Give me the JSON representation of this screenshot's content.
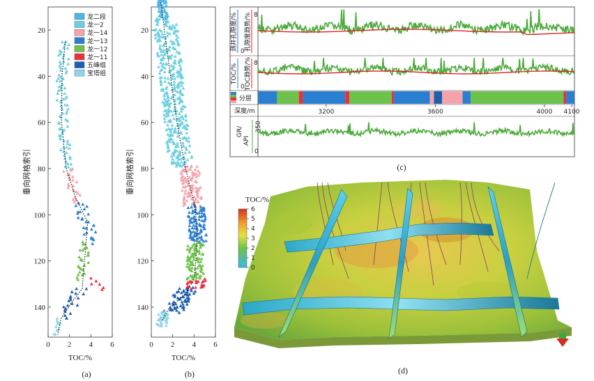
{
  "chart_data": [
    {
      "panel": "a",
      "type": "scatter",
      "caption": "(a)",
      "xlabel": "TOC/%",
      "ylabel": "垂向网格索引",
      "xlim": [
        0,
        6
      ],
      "ylim": [
        153,
        10
      ],
      "xticks": [
        0,
        2,
        4,
        6
      ],
      "yticks": [
        20,
        40,
        60,
        80,
        100,
        120,
        140
      ],
      "legend": [
        {
          "name": "龙二段",
          "color": "#4db6e6"
        },
        {
          "name": "龙一2",
          "color": "#6ccfe0"
        },
        {
          "name": "龙一14",
          "color": "#f4a3aa"
        },
        {
          "name": "龙一13",
          "color": "#2b7fd0"
        },
        {
          "name": "龙一12",
          "color": "#6cc24a"
        },
        {
          "name": "龙一11",
          "color": "#e8303f"
        },
        {
          "name": "五峰组",
          "color": "#1f5fb0"
        },
        {
          "name": "宝塔组",
          "color": "#8fd4ea"
        }
      ],
      "series": [
        {
          "name": "龙一2",
          "color": "#6ccfe0",
          "y": [
            25,
            80
          ],
          "center": [
            1.6,
            1.2,
            1.5,
            1.7
          ],
          "spread": 0.5
        },
        {
          "name": "龙一14",
          "color": "#f4a3aa",
          "y": [
            80,
            95
          ],
          "center": [
            1.8,
            2.8
          ],
          "spread": 0.5
        },
        {
          "name": "龙一13",
          "color": "#2b7fd0",
          "y": [
            95,
            112
          ],
          "center": [
            3.2,
            4.0
          ],
          "spread": 0.7
        },
        {
          "name": "龙一12",
          "color": "#6cc24a",
          "y": [
            112,
            128
          ],
          "center": [
            3.4,
            3.2
          ],
          "spread": 0.5
        },
        {
          "name": "龙一11",
          "color": "#e8303f",
          "y": [
            128,
            132
          ],
          "center": [
            4.2,
            4.8
          ],
          "spread": 0.5
        },
        {
          "name": "五峰组",
          "color": "#1f5fb0",
          "y": [
            132,
            145
          ],
          "center": [
            3.0,
            1.4
          ],
          "spread": 0.7
        },
        {
          "name": "宝塔组",
          "color": "#8fd4ea",
          "y": [
            145,
            152
          ],
          "center": [
            1.0,
            0.8
          ],
          "spread": 0.3
        }
      ],
      "trend": [
        [
          1.6,
          25
        ],
        [
          1.3,
          40
        ],
        [
          1.25,
          60
        ],
        [
          1.7,
          80
        ],
        [
          2.6,
          93
        ],
        [
          3.7,
          103
        ],
        [
          3.5,
          115
        ],
        [
          3.3,
          125
        ],
        [
          3.2,
          132
        ],
        [
          2.2,
          138
        ],
        [
          1.2,
          145
        ],
        [
          0.9,
          152
        ]
      ]
    },
    {
      "panel": "b",
      "type": "scatter",
      "caption": "(b)",
      "xlabel": "TOC/%",
      "ylabel": "垂向网格索引",
      "xlim": [
        0,
        6
      ],
      "ylim": [
        153,
        10
      ],
      "xticks": [
        0,
        2,
        4,
        6
      ],
      "yticks": [
        20,
        40,
        60,
        80,
        100,
        120,
        140
      ],
      "series": [
        {
          "name": "龙二段",
          "color": "#4db6e6",
          "y": [
            5,
            15
          ],
          "center": [
            0.9,
            1.2
          ],
          "spread": 0.4
        },
        {
          "name": "龙一2",
          "color": "#6ccfe0",
          "y": [
            15,
            79
          ],
          "center": [
            1.3,
            2.8
          ],
          "spread": 1.1
        },
        {
          "name": "龙一14",
          "color": "#f4a3aa",
          "y": [
            79,
            96
          ],
          "center": [
            3.6,
            3.9
          ],
          "spread": 0.9
        },
        {
          "name": "龙一13",
          "color": "#2b7fd0",
          "y": [
            96,
            112
          ],
          "center": [
            4.2,
            4.4
          ],
          "spread": 0.8
        },
        {
          "name": "龙一12",
          "color": "#6cc24a",
          "y": [
            112,
            128
          ],
          "center": [
            4.2,
            4.1
          ],
          "spread": 0.8
        },
        {
          "name": "龙一11",
          "color": "#e8303f",
          "y": [
            128,
            132
          ],
          "center": [
            4.3,
            4.0
          ],
          "spread": 0.8
        },
        {
          "name": "五峰组",
          "color": "#1f5fb0",
          "y": [
            132,
            142
          ],
          "center": [
            3.4,
            2.0
          ],
          "spread": 0.9
        },
        {
          "name": "宝塔组",
          "color": "#8fd4ea",
          "y": [
            142,
            148
          ],
          "center": [
            1.2,
            0.9
          ],
          "spread": 0.5
        }
      ],
      "trend": [
        [
          0.9,
          8
        ],
        [
          1.5,
          30
        ],
        [
          2.4,
          60
        ],
        [
          3.2,
          80
        ],
        [
          4.0,
          95
        ],
        [
          4.3,
          105
        ],
        [
          4.2,
          118
        ],
        [
          4.0,
          128
        ],
        [
          3.2,
          134
        ],
        [
          1.6,
          141
        ],
        [
          1.0,
          146
        ]
      ]
    },
    {
      "panel": "c",
      "type": "line",
      "caption": "(c)",
      "xlabel": "深度/m",
      "xlim": [
        2950,
        4110
      ],
      "xticks": [
        3200,
        3600,
        4000,
        4100
      ],
      "tracks": [
        {
          "name": "测井孔隙度/孔隙度趋势",
          "left_scale": "0",
          "right_scale": "8",
          "labels": [
            "测井孔隙度/%",
            "孔隙度趋势/%"
          ],
          "colors": [
            "#4aaa3a",
            "#e02020"
          ]
        },
        {
          "name": "TOC/TOC趋势",
          "left_scale": "0",
          "right_scale": "8",
          "labels": [
            "TOC/%",
            "TOC趋势/%"
          ],
          "colors": [
            "#4aaa3a",
            "#e02020"
          ]
        },
        {
          "name": "分层",
          "label": "分层",
          "segments": [
            {
              "from": 2950,
              "to": 3020,
              "color": "#2b7fd0"
            },
            {
              "from": 3020,
              "to": 3100,
              "color": "#6cc24a"
            },
            {
              "from": 3100,
              "to": 3115,
              "color": "#e8303f"
            },
            {
              "from": 3115,
              "to": 3270,
              "color": "#2b7fd0"
            },
            {
              "from": 3270,
              "to": 3285,
              "color": "#e8303f"
            },
            {
              "from": 3285,
              "to": 3440,
              "color": "#6cc24a"
            },
            {
              "from": 3440,
              "to": 3448,
              "color": "#e8303f"
            },
            {
              "from": 3448,
              "to": 3580,
              "color": "#2b7fd0"
            },
            {
              "from": 3580,
              "to": 3595,
              "color": "#f4a3aa"
            },
            {
              "from": 3595,
              "to": 3625,
              "color": "#1f5fb0"
            },
            {
              "from": 3625,
              "to": 3700,
              "color": "#f4a3aa"
            },
            {
              "from": 3700,
              "to": 3730,
              "color": "#2b7fd0"
            },
            {
              "from": 3730,
              "to": 4070,
              "color": "#6cc24a"
            },
            {
              "from": 4070,
              "to": 4080,
              "color": "#e8303f"
            },
            {
              "from": 4080,
              "to": 4110,
              "color": "#2b7fd0"
            }
          ]
        },
        {
          "name": "GR",
          "labels": [
            "GR/",
            "API"
          ],
          "left_scale": "0",
          "right_scale": "350",
          "colors": [
            "#4aaa3a"
          ]
        }
      ]
    },
    {
      "panel": "d",
      "type": "heatmap",
      "caption": "(d)",
      "colorbar": {
        "title": "TOC/%",
        "min": 0,
        "max": 6,
        "ticks": [
          "0",
          "1",
          "2",
          "3",
          "4",
          "5",
          "6"
        ]
      }
    }
  ]
}
